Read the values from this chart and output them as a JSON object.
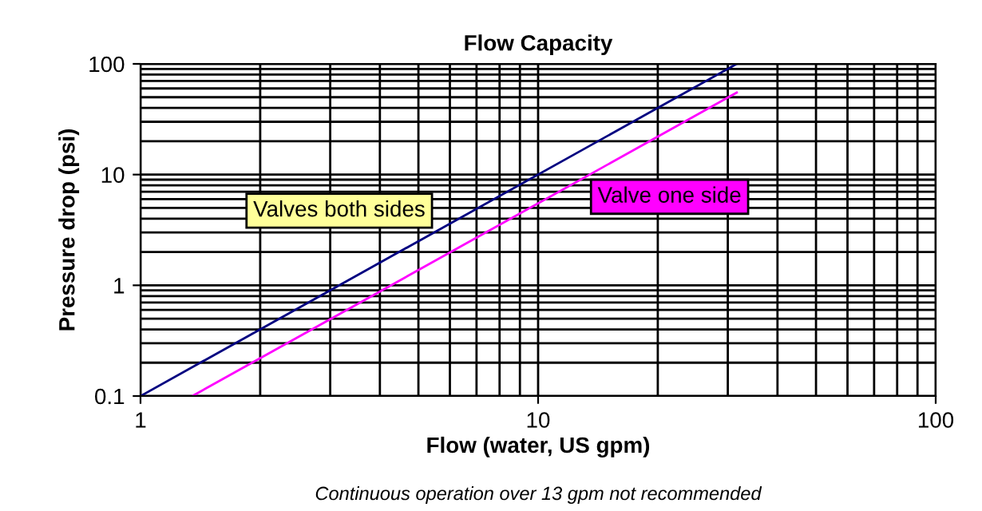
{
  "chart_data": {
    "type": "line",
    "title": "Flow Capacity",
    "xlabel": "Flow (water, US gpm)",
    "ylabel": "Pressure drop (psi)",
    "log": "xy",
    "grid": true,
    "legend": false,
    "xlim": [
      1,
      100
    ],
    "ylim": [
      0.1,
      100
    ],
    "xticks": [
      1,
      10,
      100
    ],
    "yticks": [
      0.1,
      1,
      10,
      100
    ],
    "series": [
      {
        "name": "Valves both sides",
        "color": "#000080",
        "x": [
          1,
          31.6
        ],
        "values": [
          0.1,
          100
        ]
      },
      {
        "name": "Valve one side",
        "color": "#ff00ff",
        "x": [
          1.35,
          31.6
        ],
        "values": [
          0.1,
          55
        ]
      }
    ],
    "annotations": [
      "Continuous operation over 13 gpm not recommended"
    ]
  }
}
